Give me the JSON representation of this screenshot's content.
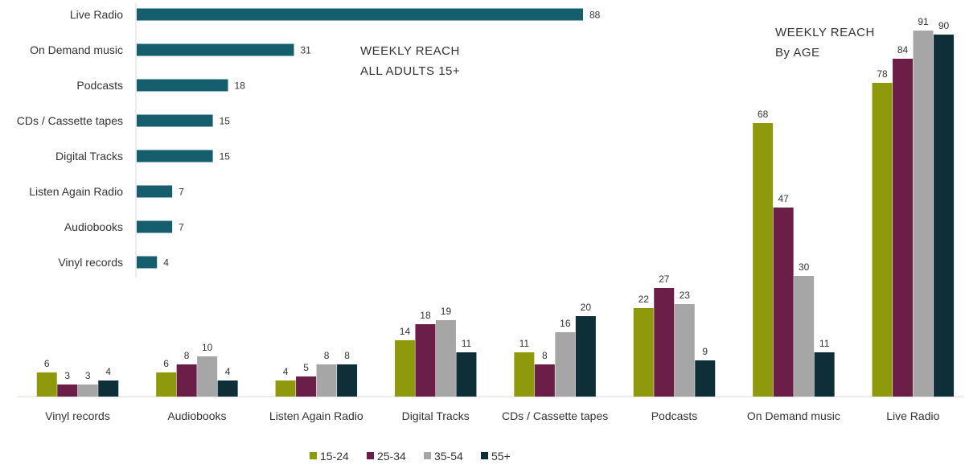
{
  "chart_data": [
    {
      "type": "bar",
      "orientation": "horizontal",
      "annotation_lines": [
        "WEEKLY REACH",
        "ALL ADULTS 15+"
      ],
      "categories": [
        "Live Radio",
        "On Demand music",
        "Podcasts",
        "CDs / Cassette tapes",
        "Digital Tracks",
        "Listen Again Radio",
        "Audiobooks",
        "Vinyl records"
      ],
      "values": [
        88,
        31,
        18,
        15,
        15,
        7,
        7,
        4
      ],
      "value_labels": [
        "88",
        "31",
        "18",
        "15",
        "15",
        "7",
        "7",
        "4"
      ],
      "color": "#165e6e",
      "xlim": [
        0,
        100
      ],
      "grid": false,
      "legend": "none"
    },
    {
      "type": "bar",
      "orientation": "vertical",
      "annotation_lines": [
        "WEEKLY REACH",
        "By AGE"
      ],
      "categories": [
        "Vinyl records",
        "Audiobooks",
        "Listen Again Radio",
        "Digital Tracks",
        "CDs / Cassette tapes",
        "Podcasts",
        "On Demand music",
        "Live Radio"
      ],
      "series": [
        {
          "name": "15-24",
          "color": "#8e9a0b",
          "values": [
            6,
            6,
            4,
            14,
            11,
            22,
            68,
            78
          ],
          "value_labels": [
            "6",
            "6",
            "4",
            "14",
            "11",
            "22",
            "68",
            "78"
          ]
        },
        {
          "name": "25-34",
          "color": "#6b1f48",
          "values": [
            3,
            8,
            5,
            18,
            8,
            27,
            47,
            84
          ],
          "value_labels": [
            "3",
            "8",
            "5",
            "18",
            "8",
            "27",
            "47",
            "84"
          ]
        },
        {
          "name": "35-54",
          "color": "#a6a6a6",
          "values": [
            3,
            10,
            8,
            19,
            16,
            23,
            30,
            91
          ],
          "value_labels": [
            "3",
            "10",
            "8",
            "19",
            "16",
            "23",
            "30",
            "91"
          ]
        },
        {
          "name": "55+",
          "color": "#0e2f37",
          "values": [
            4,
            4,
            8,
            11,
            20,
            9,
            11,
            90
          ],
          "value_labels": [
            "4",
            "4",
            "8",
            "11",
            "20",
            "9",
            "11",
            "90"
          ]
        }
      ],
      "ylim": [
        0,
        100
      ],
      "grid": false,
      "legend": "bottom-center"
    }
  ]
}
